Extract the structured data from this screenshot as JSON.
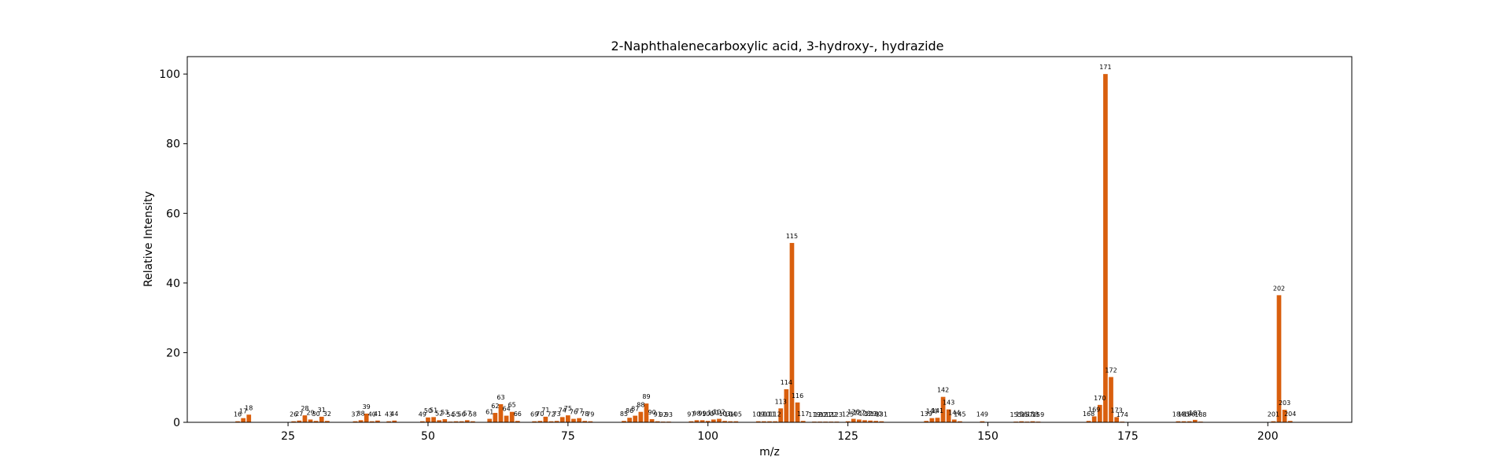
{
  "chart_data": {
    "type": "bar",
    "title": "2-Naphthalenecarboxylic acid, 3-hydroxy-, hydrazide",
    "xlabel": "m/z",
    "ylabel": "Relative Intensity",
    "xlim": [
      7,
      215
    ],
    "ylim": [
      0,
      105
    ],
    "xticks": [
      25,
      50,
      75,
      100,
      125,
      150,
      175,
      200
    ],
    "yticks": [
      0,
      20,
      40,
      60,
      80,
      100
    ],
    "grid": false,
    "bar_color": "#d95f0e",
    "peaks": [
      {
        "mz": 16,
        "intensity": 0.3
      },
      {
        "mz": 17,
        "intensity": 1.2
      },
      {
        "mz": 18,
        "intensity": 2.2
      },
      {
        "mz": 26,
        "intensity": 0.3
      },
      {
        "mz": 27,
        "intensity": 0.5
      },
      {
        "mz": 28,
        "intensity": 2.0
      },
      {
        "mz": 29,
        "intensity": 0.8
      },
      {
        "mz": 30,
        "intensity": 0.4
      },
      {
        "mz": 31,
        "intensity": 1.6
      },
      {
        "mz": 32,
        "intensity": 0.4
      },
      {
        "mz": 37,
        "intensity": 0.3
      },
      {
        "mz": 38,
        "intensity": 0.6
      },
      {
        "mz": 39,
        "intensity": 2.5
      },
      {
        "mz": 40,
        "intensity": 0.3
      },
      {
        "mz": 41,
        "intensity": 0.5
      },
      {
        "mz": 43,
        "intensity": 0.3
      },
      {
        "mz": 44,
        "intensity": 0.5
      },
      {
        "mz": 49,
        "intensity": 0.3
      },
      {
        "mz": 50,
        "intensity": 1.4
      },
      {
        "mz": 51,
        "intensity": 1.5
      },
      {
        "mz": 52,
        "intensity": 0.6
      },
      {
        "mz": 53,
        "intensity": 0.9
      },
      {
        "mz": 54,
        "intensity": 0.2
      },
      {
        "mz": 55,
        "intensity": 0.3
      },
      {
        "mz": 56,
        "intensity": 0.3
      },
      {
        "mz": 57,
        "intensity": 0.6
      },
      {
        "mz": 58,
        "intensity": 0.3
      },
      {
        "mz": 61,
        "intensity": 1.0
      },
      {
        "mz": 62,
        "intensity": 2.7
      },
      {
        "mz": 63,
        "intensity": 5.2
      },
      {
        "mz": 64,
        "intensity": 1.9
      },
      {
        "mz": 65,
        "intensity": 3.0
      },
      {
        "mz": 66,
        "intensity": 0.4
      },
      {
        "mz": 69,
        "intensity": 0.3
      },
      {
        "mz": 70,
        "intensity": 0.4
      },
      {
        "mz": 71,
        "intensity": 1.6
      },
      {
        "mz": 72,
        "intensity": 0.3
      },
      {
        "mz": 73,
        "intensity": 0.4
      },
      {
        "mz": 74,
        "intensity": 1.5
      },
      {
        "mz": 75,
        "intensity": 2.0
      },
      {
        "mz": 76,
        "intensity": 1.0
      },
      {
        "mz": 77,
        "intensity": 1.2
      },
      {
        "mz": 78,
        "intensity": 0.4
      },
      {
        "mz": 79,
        "intensity": 0.3
      },
      {
        "mz": 85,
        "intensity": 0.4
      },
      {
        "mz": 86,
        "intensity": 1.3
      },
      {
        "mz": 87,
        "intensity": 1.9
      },
      {
        "mz": 88,
        "intensity": 3.0
      },
      {
        "mz": 89,
        "intensity": 5.4
      },
      {
        "mz": 90,
        "intensity": 0.9
      },
      {
        "mz": 91,
        "intensity": 0.3
      },
      {
        "mz": 92,
        "intensity": 0.2
      },
      {
        "mz": 93,
        "intensity": 0.2
      },
      {
        "mz": 97,
        "intensity": 0.3
      },
      {
        "mz": 98,
        "intensity": 0.6
      },
      {
        "mz": 99,
        "intensity": 0.6
      },
      {
        "mz": 100,
        "intensity": 0.4
      },
      {
        "mz": 101,
        "intensity": 0.8
      },
      {
        "mz": 102,
        "intensity": 1.0
      },
      {
        "mz": 103,
        "intensity": 0.4
      },
      {
        "mz": 104,
        "intensity": 0.3
      },
      {
        "mz": 105,
        "intensity": 0.3
      },
      {
        "mz": 109,
        "intensity": 0.3
      },
      {
        "mz": 110,
        "intensity": 0.3
      },
      {
        "mz": 111,
        "intensity": 0.3
      },
      {
        "mz": 112,
        "intensity": 0.3
      },
      {
        "mz": 113,
        "intensity": 4.0
      },
      {
        "mz": 114,
        "intensity": 9.5
      },
      {
        "mz": 115,
        "intensity": 51.5
      },
      {
        "mz": 116,
        "intensity": 5.7
      },
      {
        "mz": 117,
        "intensity": 0.4
      },
      {
        "mz": 119,
        "intensity": 0.2
      },
      {
        "mz": 120,
        "intensity": 0.2
      },
      {
        "mz": 121,
        "intensity": 0.2
      },
      {
        "mz": 122,
        "intensity": 0.2
      },
      {
        "mz": 123,
        "intensity": 0.2
      },
      {
        "mz": 125,
        "intensity": 0.3
      },
      {
        "mz": 126,
        "intensity": 1.0
      },
      {
        "mz": 127,
        "intensity": 0.8
      },
      {
        "mz": 128,
        "intensity": 0.6
      },
      {
        "mz": 129,
        "intensity": 0.5
      },
      {
        "mz": 130,
        "intensity": 0.4
      },
      {
        "mz": 131,
        "intensity": 0.3
      },
      {
        "mz": 139,
        "intensity": 0.4
      },
      {
        "mz": 140,
        "intensity": 1.2
      },
      {
        "mz": 141,
        "intensity": 1.3
      },
      {
        "mz": 142,
        "intensity": 7.3
      },
      {
        "mz": 143,
        "intensity": 3.7
      },
      {
        "mz": 144,
        "intensity": 0.8
      },
      {
        "mz": 145,
        "intensity": 0.3
      },
      {
        "mz": 149,
        "intensity": 0.3
      },
      {
        "mz": 155,
        "intensity": 0.2
      },
      {
        "mz": 156,
        "intensity": 0.3
      },
      {
        "mz": 157,
        "intensity": 0.2
      },
      {
        "mz": 158,
        "intensity": 0.3
      },
      {
        "mz": 159,
        "intensity": 0.2
      },
      {
        "mz": 168,
        "intensity": 0.4
      },
      {
        "mz": 169,
        "intensity": 1.7
      },
      {
        "mz": 170,
        "intensity": 5.0
      },
      {
        "mz": 171,
        "intensity": 100.0
      },
      {
        "mz": 172,
        "intensity": 13.0
      },
      {
        "mz": 173,
        "intensity": 1.5
      },
      {
        "mz": 174,
        "intensity": 0.2
      },
      {
        "mz": 184,
        "intensity": 0.3
      },
      {
        "mz": 185,
        "intensity": 0.3
      },
      {
        "mz": 186,
        "intensity": 0.3
      },
      {
        "mz": 187,
        "intensity": 0.7
      },
      {
        "mz": 188,
        "intensity": 0.2
      },
      {
        "mz": 201,
        "intensity": 0.3
      },
      {
        "mz": 202,
        "intensity": 36.5
      },
      {
        "mz": 203,
        "intensity": 3.6
      },
      {
        "mz": 204,
        "intensity": 0.4
      }
    ]
  }
}
